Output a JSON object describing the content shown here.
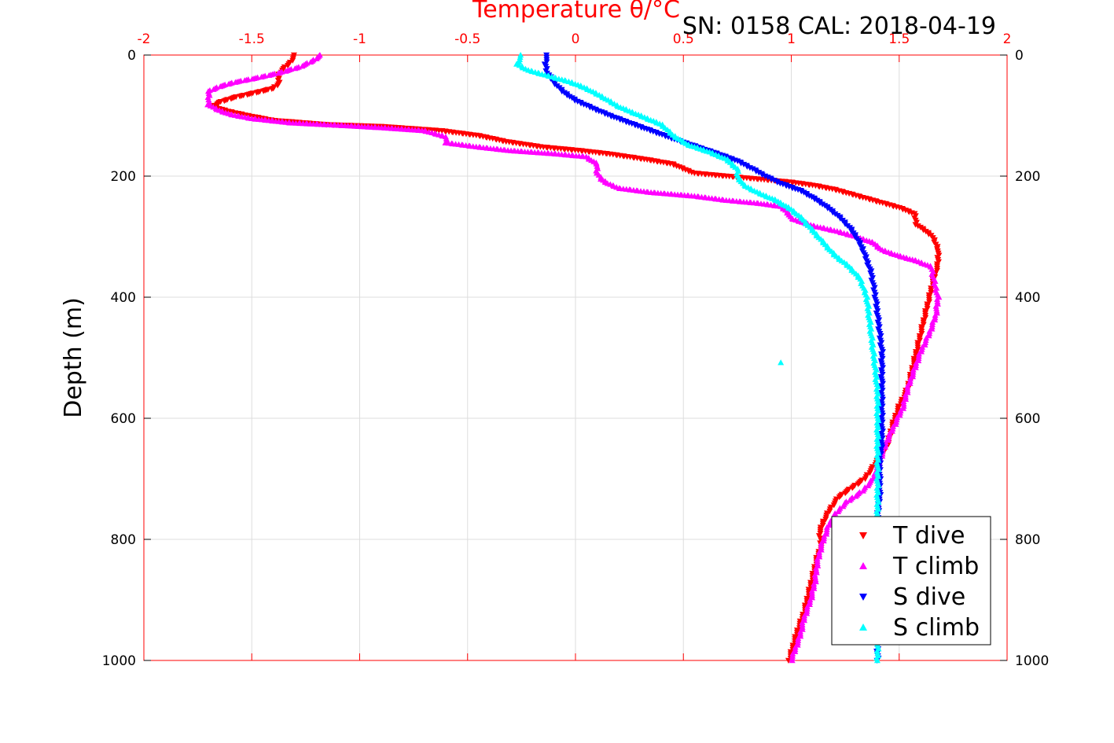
{
  "header": {
    "top_title": "Temperature θ/°C",
    "sn_cal": "SN: 0158  CAL: 2018-04-19"
  },
  "colors": {
    "t_dive": "#ff0000",
    "t_climb": "#ff00ff",
    "s_dive": "#0000ff",
    "s_climb": "#00ffff",
    "top_axis": "#ff0000",
    "grid": "#dddddd"
  },
  "chart_data": {
    "type": "scatter",
    "title": "Temperature θ/°C",
    "xlabel": "Temperature θ/°C",
    "ylabel": "Depth (m)",
    "xlim": [
      -2,
      2
    ],
    "ylim": [
      1000,
      0
    ],
    "y_reversed": true,
    "x_ticks": [
      "-2",
      "-1.5",
      "-1",
      "-0.5",
      "0",
      "0.5",
      "1",
      "1.5",
      "2"
    ],
    "y_ticks": [
      "0",
      "200",
      "400",
      "600",
      "800",
      "1000"
    ],
    "grid": true,
    "legend_position": "bottom-right",
    "series": [
      {
        "name": "T dive",
        "marker": "triangle-down",
        "points": [
          [
            -1.3,
            0
          ],
          [
            -1.32,
            12
          ],
          [
            -1.36,
            25
          ],
          [
            -1.38,
            35
          ],
          [
            -1.37,
            45
          ],
          [
            -1.4,
            55
          ],
          [
            -1.48,
            62
          ],
          [
            -1.58,
            70
          ],
          [
            -1.65,
            78
          ],
          [
            -1.68,
            85
          ],
          [
            -1.62,
            92
          ],
          [
            -1.52,
            100
          ],
          [
            -1.4,
            108
          ],
          [
            -1.15,
            115
          ],
          [
            -0.9,
            118
          ],
          [
            -0.62,
            125
          ],
          [
            -0.45,
            133
          ],
          [
            -0.32,
            143
          ],
          [
            -0.15,
            152
          ],
          [
            0.0,
            157
          ],
          [
            0.15,
            163
          ],
          [
            0.32,
            172
          ],
          [
            0.45,
            180
          ],
          [
            0.5,
            188
          ],
          [
            0.55,
            195
          ],
          [
            0.7,
            200
          ],
          [
            0.85,
            205
          ],
          [
            1.0,
            210
          ],
          [
            1.1,
            215
          ],
          [
            1.2,
            222
          ],
          [
            1.3,
            232
          ],
          [
            1.4,
            242
          ],
          [
            1.5,
            252
          ],
          [
            1.57,
            262
          ],
          [
            1.58,
            280
          ],
          [
            1.65,
            298
          ],
          [
            1.68,
            320
          ],
          [
            1.68,
            345
          ],
          [
            1.66,
            370
          ],
          [
            1.64,
            400
          ],
          [
            1.62,
            430
          ],
          [
            1.6,
            460
          ],
          [
            1.58,
            490
          ],
          [
            1.56,
            520
          ],
          [
            1.54,
            550
          ],
          [
            1.5,
            580
          ],
          [
            1.47,
            610
          ],
          [
            1.45,
            640
          ],
          [
            1.42,
            660
          ],
          [
            1.38,
            680
          ],
          [
            1.34,
            700
          ],
          [
            1.28,
            715
          ],
          [
            1.22,
            730
          ],
          [
            1.18,
            750
          ],
          [
            1.15,
            770
          ],
          [
            1.13,
            790
          ],
          [
            1.14,
            810
          ],
          [
            1.12,
            830
          ],
          [
            1.1,
            860
          ],
          [
            1.08,
            890
          ],
          [
            1.06,
            920
          ],
          [
            1.03,
            950
          ],
          [
            1.01,
            975
          ],
          [
            0.99,
            1000
          ]
        ]
      },
      {
        "name": "T climb",
        "marker": "triangle-up",
        "points": [
          [
            -1.18,
            0
          ],
          [
            -1.22,
            10
          ],
          [
            -1.28,
            20
          ],
          [
            -1.38,
            30
          ],
          [
            -1.48,
            38
          ],
          [
            -1.58,
            45
          ],
          [
            -1.65,
            52
          ],
          [
            -1.7,
            60
          ],
          [
            -1.7,
            70
          ],
          [
            -1.7,
            82
          ],
          [
            -1.66,
            90
          ],
          [
            -1.6,
            98
          ],
          [
            -1.5,
            105
          ],
          [
            -1.32,
            112
          ],
          [
            -1.1,
            116
          ],
          [
            -0.9,
            120
          ],
          [
            -0.7,
            125
          ],
          [
            -0.6,
            135
          ],
          [
            -0.6,
            145
          ],
          [
            -0.45,
            152
          ],
          [
            -0.3,
            158
          ],
          [
            -0.1,
            163
          ],
          [
            0.05,
            168
          ],
          [
            0.1,
            180
          ],
          [
            0.1,
            195
          ],
          [
            0.12,
            205
          ],
          [
            0.15,
            212
          ],
          [
            0.2,
            220
          ],
          [
            0.35,
            227
          ],
          [
            0.55,
            233
          ],
          [
            0.7,
            240
          ],
          [
            0.85,
            245
          ],
          [
            0.95,
            250
          ],
          [
            0.98,
            258
          ],
          [
            1.0,
            270
          ],
          [
            1.1,
            282
          ],
          [
            1.2,
            290
          ],
          [
            1.3,
            300
          ],
          [
            1.38,
            310
          ],
          [
            1.42,
            322
          ],
          [
            1.5,
            332
          ],
          [
            1.58,
            340
          ],
          [
            1.65,
            350
          ],
          [
            1.66,
            370
          ],
          [
            1.68,
            400
          ],
          [
            1.67,
            430
          ],
          [
            1.64,
            460
          ],
          [
            1.6,
            490
          ],
          [
            1.57,
            520
          ],
          [
            1.54,
            550
          ],
          [
            1.52,
            580
          ],
          [
            1.48,
            610
          ],
          [
            1.44,
            640
          ],
          [
            1.41,
            670
          ],
          [
            1.38,
            700
          ],
          [
            1.33,
            720
          ],
          [
            1.25,
            740
          ],
          [
            1.2,
            760
          ],
          [
            1.17,
            780
          ],
          [
            1.14,
            810
          ],
          [
            1.12,
            840
          ],
          [
            1.11,
            870
          ],
          [
            1.09,
            900
          ],
          [
            1.06,
            930
          ],
          [
            1.04,
            960
          ],
          [
            1.0,
            1000
          ]
        ]
      },
      {
        "name": "S dive",
        "marker": "triangle-down",
        "points": [
          [
            -0.13,
            0
          ],
          [
            -0.14,
            15
          ],
          [
            -0.13,
            30
          ],
          [
            -0.1,
            45
          ],
          [
            -0.06,
            60
          ],
          [
            0.0,
            75
          ],
          [
            0.08,
            88
          ],
          [
            0.16,
            100
          ],
          [
            0.25,
            112
          ],
          [
            0.35,
            125
          ],
          [
            0.45,
            138
          ],
          [
            0.55,
            150
          ],
          [
            0.65,
            162
          ],
          [
            0.75,
            175
          ],
          [
            0.82,
            188
          ],
          [
            0.88,
            200
          ],
          [
            0.95,
            212
          ],
          [
            1.05,
            225
          ],
          [
            1.12,
            240
          ],
          [
            1.18,
            255
          ],
          [
            1.23,
            270
          ],
          [
            1.27,
            285
          ],
          [
            1.3,
            300
          ],
          [
            1.33,
            320
          ],
          [
            1.35,
            340
          ],
          [
            1.37,
            360
          ],
          [
            1.38,
            380
          ],
          [
            1.39,
            400
          ],
          [
            1.4,
            430
          ],
          [
            1.41,
            460
          ],
          [
            1.42,
            490
          ],
          [
            1.42,
            520
          ],
          [
            1.42,
            550
          ],
          [
            1.42,
            580
          ],
          [
            1.42,
            610
          ],
          [
            1.42,
            640
          ],
          [
            1.41,
            670
          ],
          [
            1.41,
            700
          ],
          [
            1.41,
            730
          ],
          [
            1.4,
            760
          ],
          [
            1.4,
            800
          ],
          [
            1.4,
            850
          ],
          [
            1.4,
            900
          ],
          [
            1.4,
            950
          ],
          [
            1.4,
            1000
          ]
        ]
      },
      {
        "name": "S climb",
        "marker": "triangle-up",
        "points": [
          [
            -0.25,
            0
          ],
          [
            -0.27,
            15
          ],
          [
            -0.22,
            25
          ],
          [
            -0.12,
            35
          ],
          [
            -0.02,
            45
          ],
          [
            0.05,
            55
          ],
          [
            0.12,
            68
          ],
          [
            0.2,
            85
          ],
          [
            0.3,
            100
          ],
          [
            0.4,
            115
          ],
          [
            0.45,
            132
          ],
          [
            0.52,
            148
          ],
          [
            0.62,
            160
          ],
          [
            0.7,
            172
          ],
          [
            0.75,
            188
          ],
          [
            0.75,
            200
          ],
          [
            0.78,
            215
          ],
          [
            0.85,
            228
          ],
          [
            0.93,
            240
          ],
          [
            1.0,
            255
          ],
          [
            1.05,
            270
          ],
          [
            1.1,
            290
          ],
          [
            1.15,
            310
          ],
          [
            1.2,
            330
          ],
          [
            1.27,
            350
          ],
          [
            1.32,
            370
          ],
          [
            1.35,
            400
          ],
          [
            1.36,
            430
          ],
          [
            1.37,
            460
          ],
          [
            1.38,
            490
          ],
          [
            1.39,
            520
          ],
          [
            1.4,
            560
          ],
          [
            1.4,
            600
          ],
          [
            1.4,
            650
          ],
          [
            1.4,
            700
          ],
          [
            1.4,
            750
          ],
          [
            1.4,
            800
          ],
          [
            1.4,
            850
          ],
          [
            1.4,
            900
          ],
          [
            1.4,
            950
          ],
          [
            1.4,
            1000
          ],
          [
            0.95,
            508
          ]
        ]
      }
    ]
  }
}
